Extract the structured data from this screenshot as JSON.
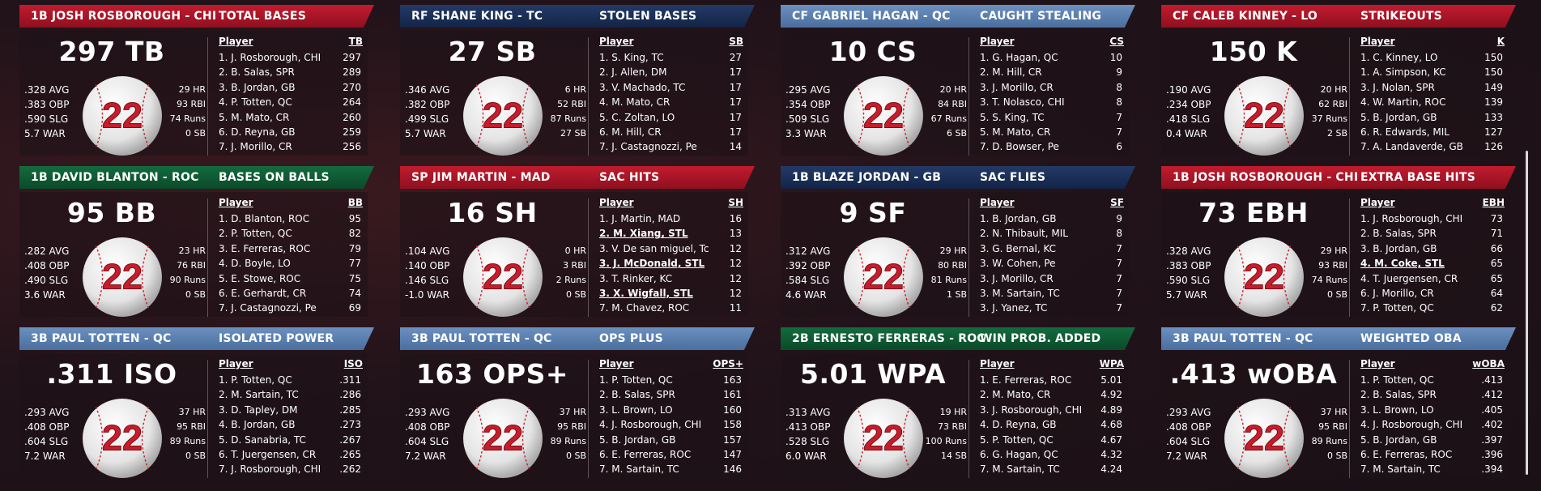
{
  "cards": [
    {
      "player": "1B JOSH ROSBOROUGH - CHI",
      "category": "TOTAL BASES",
      "color": "red",
      "big": "297 TB",
      "left": [
        ".328 AVG",
        ".383 OBP",
        ".590 SLG",
        "5.7 WAR"
      ],
      "right": [
        "29 HR",
        "93 RBI",
        "74 Runs",
        "0 SB"
      ],
      "number": "22",
      "col_player": "Player",
      "col_stat": "TB",
      "rows": [
        [
          "1. J. Rosborough, CHI",
          "297"
        ],
        [
          "2. B. Salas, SPR",
          "289"
        ],
        [
          "3. B. Jordan, GB",
          "270"
        ],
        [
          "4. P. Totten, QC",
          "264"
        ],
        [
          "5. M. Mato, CR",
          "260"
        ],
        [
          "6. D. Reyna, GB",
          "259"
        ],
        [
          "7. J. Morillo, CR",
          "256"
        ]
      ]
    },
    {
      "player": "RF SHANE KING - TC",
      "category": "STOLEN BASES",
      "color": "navy",
      "big": "27 SB",
      "left": [
        ".346 AVG",
        ".382 OBP",
        ".499 SLG",
        "5.7 WAR"
      ],
      "right": [
        "6 HR",
        "52 RBI",
        "87 Runs",
        "27 SB"
      ],
      "number": "22",
      "col_player": "Player",
      "col_stat": "SB",
      "rows": [
        [
          "1. S. King, TC",
          "27"
        ],
        [
          "2. J. Allen, DM",
          "17"
        ],
        [
          "3. V. Machado, TC",
          "17"
        ],
        [
          "4. M. Mato, CR",
          "17"
        ],
        [
          "5. C. Zoltan, LO",
          "17"
        ],
        [
          "6. M. Hill, CR",
          "17"
        ],
        [
          "7. J. Castagnozzi, Pe",
          "14"
        ]
      ]
    },
    {
      "player": "CF GABRIEL HAGAN - QC",
      "category": "CAUGHT STEALING",
      "color": "lblue",
      "big": "10 CS",
      "left": [
        ".295 AVG",
        ".354 OBP",
        ".509 SLG",
        "3.3 WAR"
      ],
      "right": [
        "20 HR",
        "84 RBI",
        "67 Runs",
        "6 SB"
      ],
      "number": "22",
      "col_player": "Player",
      "col_stat": "CS",
      "rows": [
        [
          "1. G. Hagan, QC",
          "10"
        ],
        [
          "2. M. Hill, CR",
          "9"
        ],
        [
          "3. J. Morillo, CR",
          "8"
        ],
        [
          "3. T. Nolasco, CHI",
          "8"
        ],
        [
          "5. S. King, TC",
          "7"
        ],
        [
          "5. M. Mato, CR",
          "7"
        ],
        [
          "7. D. Bowser, Pe",
          "6"
        ]
      ]
    },
    {
      "player": "CF CALEB KINNEY - LO",
      "category": "STRIKEOUTS",
      "color": "red",
      "big": "150 K",
      "left": [
        ".190 AVG",
        ".234 OBP",
        ".418 SLG",
        "0.4 WAR"
      ],
      "right": [
        "20 HR",
        "62 RBI",
        "37 Runs",
        "2 SB"
      ],
      "number": "22",
      "col_player": "Player",
      "col_stat": "K",
      "rows": [
        [
          "1. C. Kinney, LO",
          "150"
        ],
        [
          "1. A. Simpson, KC",
          "150"
        ],
        [
          "3. J. Nolan, SPR",
          "149"
        ],
        [
          "4. W. Martin, ROC",
          "139"
        ],
        [
          "5. B. Jordan, GB",
          "133"
        ],
        [
          "6. R. Edwards, MIL",
          "127"
        ],
        [
          "7. A. Landaverde, GB",
          "126"
        ]
      ]
    },
    {
      "player": "1B DAVID BLANTON - ROC",
      "category": "BASES ON BALLS",
      "color": "green",
      "big": "95 BB",
      "left": [
        ".282 AVG",
        ".408 OBP",
        ".490 SLG",
        "3.6 WAR"
      ],
      "right": [
        "23 HR",
        "76 RBI",
        "90 Runs",
        "0 SB"
      ],
      "number": "22",
      "col_player": "Player",
      "col_stat": "BB",
      "rows": [
        [
          "1. D. Blanton, ROC",
          "95"
        ],
        [
          "2. P. Totten, QC",
          "82"
        ],
        [
          "3. E. Ferreras, ROC",
          "79"
        ],
        [
          "4. D. Boyle, LO",
          "77"
        ],
        [
          "5. E. Stowe, ROC",
          "75"
        ],
        [
          "6. E. Gerhardt, CR",
          "74"
        ],
        [
          "7. J. Castagnozzi, Pe",
          "69"
        ]
      ]
    },
    {
      "player": "SP JIM MARTIN - MAD",
      "category": "SAC HITS",
      "color": "red",
      "big": "16 SH",
      "left": [
        ".104 AVG",
        ".140 OBP",
        ".146 SLG",
        "-1.0 WAR"
      ],
      "right": [
        "0 HR",
        "3 RBI",
        "2 Runs",
        "0 SB"
      ],
      "number": "22",
      "col_player": "Player",
      "col_stat": "SH",
      "rows": [
        [
          "1. J. Martin, MAD",
          "16"
        ],
        [
          "2. M. Xiang, STL",
          "13",
          true
        ],
        [
          "3. V. De san miguel, Tc",
          "12"
        ],
        [
          "3. J. McDonald, STL",
          "12",
          true
        ],
        [
          "3. T. Rinker, KC",
          "12"
        ],
        [
          "3. X. Wigfall, STL",
          "12",
          true
        ],
        [
          "7. M. Chavez, ROC",
          "11"
        ]
      ]
    },
    {
      "player": "1B BLAZE JORDAN - GB",
      "category": "SAC FLIES",
      "color": "navy",
      "big": "9 SF",
      "left": [
        ".312 AVG",
        ".392 OBP",
        ".584 SLG",
        "4.6 WAR"
      ],
      "right": [
        "29 HR",
        "80 RBI",
        "81 Runs",
        "1 SB"
      ],
      "number": "22",
      "col_player": "Player",
      "col_stat": "SF",
      "rows": [
        [
          "1. B. Jordan, GB",
          "9"
        ],
        [
          "2. N. Thibault, MIL",
          "8"
        ],
        [
          "3. G. Bernal, KC",
          "7"
        ],
        [
          "3. W. Cohen, Pe",
          "7"
        ],
        [
          "3. J. Morillo, CR",
          "7"
        ],
        [
          "3. M. Sartain, TC",
          "7"
        ],
        [
          "3. J. Yanez, TC",
          "7"
        ]
      ]
    },
    {
      "player": "1B JOSH ROSBOROUGH - CHI",
      "category": "EXTRA BASE HITS",
      "color": "red",
      "big": "73 EBH",
      "left": [
        ".328 AVG",
        ".383 OBP",
        ".590 SLG",
        "5.7 WAR"
      ],
      "right": [
        "29 HR",
        "93 RBI",
        "74 Runs",
        "0 SB"
      ],
      "number": "22",
      "col_player": "Player",
      "col_stat": "EBH",
      "rows": [
        [
          "1. J. Rosborough, CHI",
          "73"
        ],
        [
          "2. B. Salas, SPR",
          "71"
        ],
        [
          "3. B. Jordan, GB",
          "66"
        ],
        [
          "4. M. Coke, STL",
          "65",
          true
        ],
        [
          "4. T. Juergensen, CR",
          "65"
        ],
        [
          "6. J. Morillo, CR",
          "64"
        ],
        [
          "7. P. Totten, QC",
          "62"
        ]
      ]
    },
    {
      "player": "3B PAUL TOTTEN - QC",
      "category": "ISOLATED POWER",
      "color": "lblue",
      "big": ".311 ISO",
      "left": [
        ".293 AVG",
        ".408 OBP",
        ".604 SLG",
        "7.2 WAR"
      ],
      "right": [
        "37 HR",
        "95 RBI",
        "89 Runs",
        "0 SB"
      ],
      "number": "22",
      "col_player": "Player",
      "col_stat": "ISO",
      "rows": [
        [
          "1. P. Totten, QC",
          ".311"
        ],
        [
          "2. M. Sartain, TC",
          ".286"
        ],
        [
          "3. D. Tapley, DM",
          ".285"
        ],
        [
          "4. B. Jordan, GB",
          ".273"
        ],
        [
          "5. D. Sanabria, TC",
          ".267"
        ],
        [
          "6. T. Juergensen, CR",
          ".265"
        ],
        [
          "7. J. Rosborough, CHI",
          ".262"
        ]
      ]
    },
    {
      "player": "3B PAUL TOTTEN - QC",
      "category": "OPS PLUS",
      "color": "lblue",
      "big": "163 OPS+",
      "left": [
        ".293 AVG",
        ".408 OBP",
        ".604 SLG",
        "7.2 WAR"
      ],
      "right": [
        "37 HR",
        "95 RBI",
        "89 Runs",
        "0 SB"
      ],
      "number": "22",
      "col_player": "Player",
      "col_stat": "OPS+",
      "rows": [
        [
          "1. P. Totten, QC",
          "163"
        ],
        [
          "2. B. Salas, SPR",
          "161"
        ],
        [
          "3. L. Brown, LO",
          "160"
        ],
        [
          "4. J. Rosborough, CHI",
          "158"
        ],
        [
          "5. B. Jordan, GB",
          "157"
        ],
        [
          "6. E. Ferreras, ROC",
          "147"
        ],
        [
          "7. M. Sartain, TC",
          "146"
        ]
      ]
    },
    {
      "player": "2B ERNESTO FERRERAS - ROC",
      "category": "WIN PROB. ADDED",
      "color": "green",
      "big": "5.01 WPA",
      "left": [
        ".313 AVG",
        ".413 OBP",
        ".528 SLG",
        "6.0 WAR"
      ],
      "right": [
        "19 HR",
        "73 RBI",
        "100 Runs",
        "14 SB"
      ],
      "number": "22",
      "col_player": "Player",
      "col_stat": "WPA",
      "rows": [
        [
          "1. E. Ferreras, ROC",
          "5.01"
        ],
        [
          "2. M. Mato, CR",
          "4.92"
        ],
        [
          "3. J. Rosborough, CHI",
          "4.89"
        ],
        [
          "4. D. Reyna, GB",
          "4.68"
        ],
        [
          "5. P. Totten, QC",
          "4.67"
        ],
        [
          "6. G. Hagan, QC",
          "4.32"
        ],
        [
          "7. M. Sartain, TC",
          "4.24"
        ]
      ]
    },
    {
      "player": "3B PAUL TOTTEN - QC",
      "category": "WEIGHTED OBA",
      "color": "lblue",
      "big": ".413 wOBA",
      "left": [
        ".293 AVG",
        ".408 OBP",
        ".604 SLG",
        "7.2 WAR"
      ],
      "right": [
        "37 HR",
        "95 RBI",
        "89 Runs",
        "0 SB"
      ],
      "number": "22",
      "col_player": "Player",
      "col_stat": "wOBA",
      "rows": [
        [
          "1. P. Totten, QC",
          ".413"
        ],
        [
          "2. B. Salas, SPR",
          ".412"
        ],
        [
          "3. L. Brown, LO",
          ".405"
        ],
        [
          "4. J. Rosborough, CHI",
          ".402"
        ],
        [
          "5. B. Jordan, GB",
          ".397"
        ],
        [
          "6. E. Ferreras, ROC",
          ".396"
        ],
        [
          "7. M. Sartain, TC",
          ".394"
        ]
      ]
    }
  ]
}
